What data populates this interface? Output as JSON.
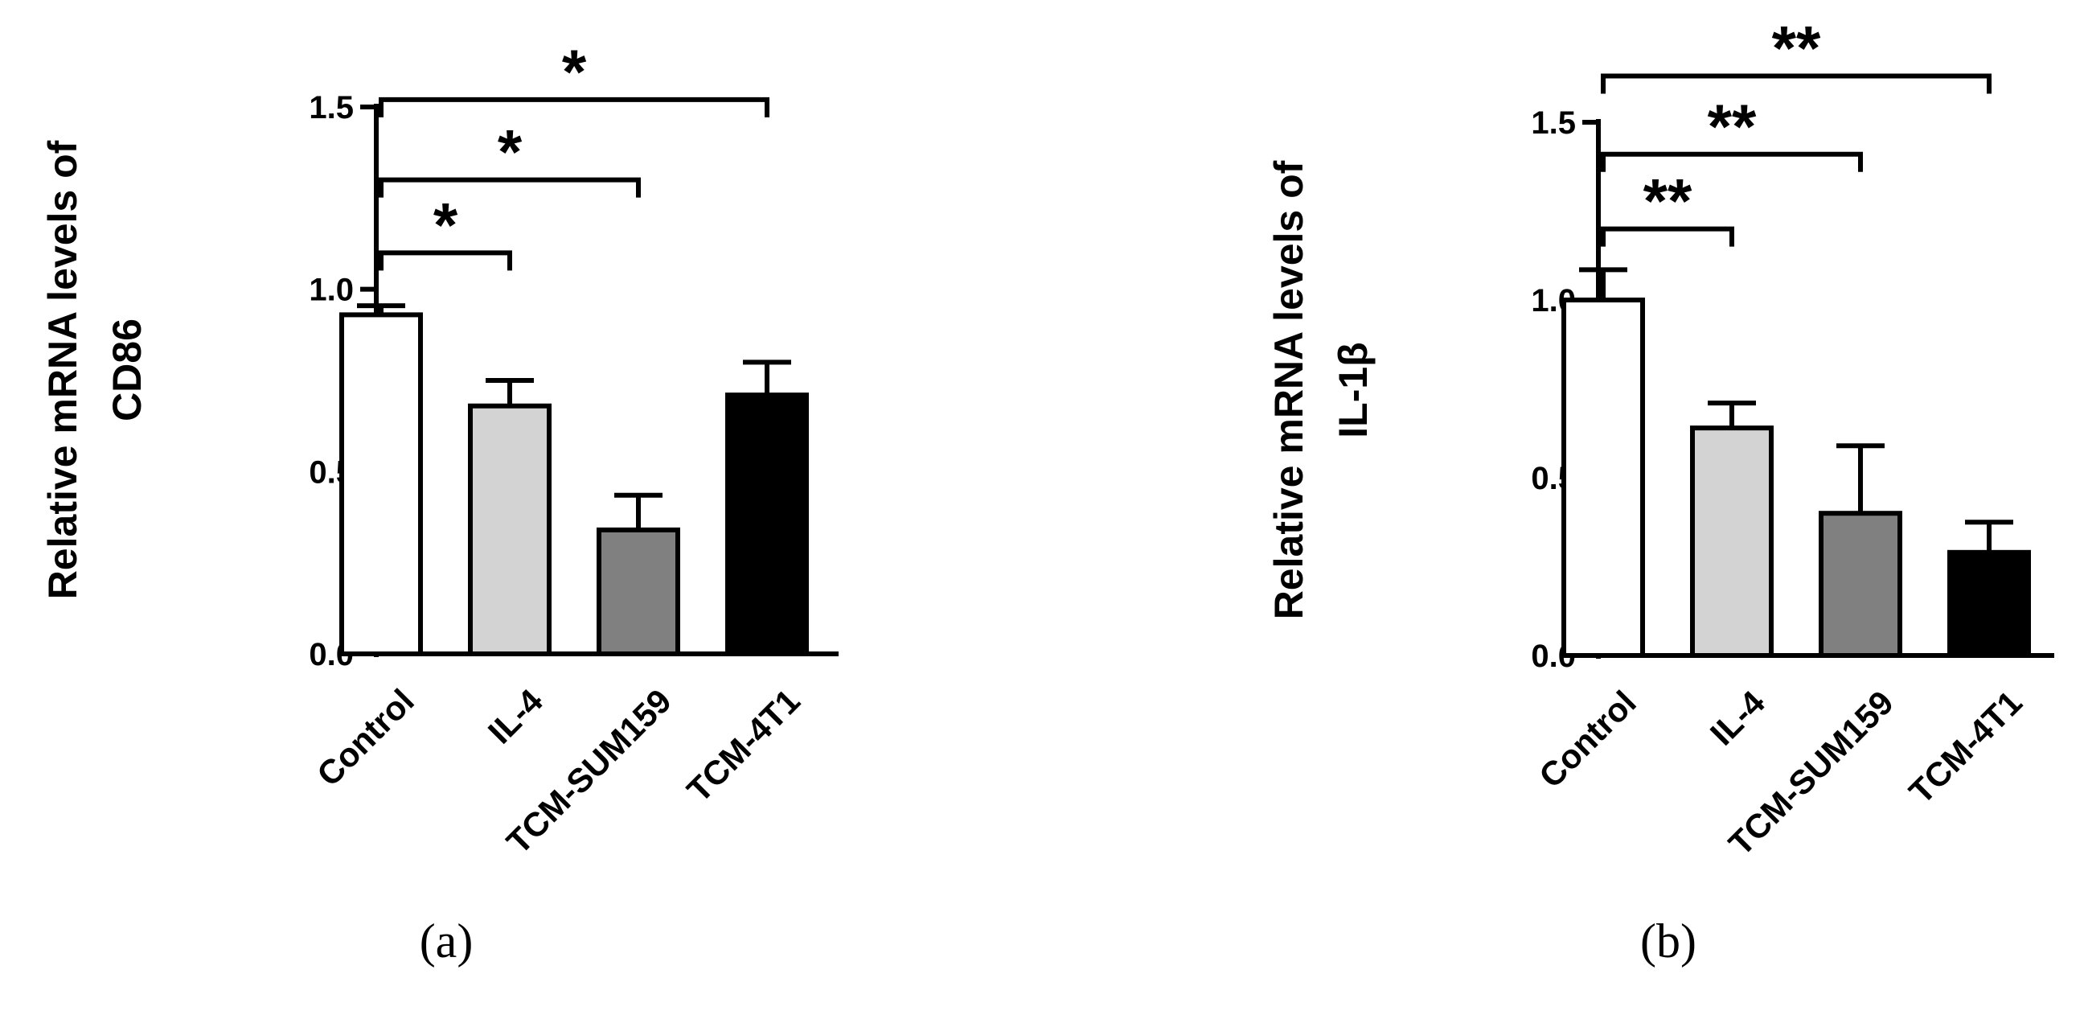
{
  "chart_data": [
    {
      "type": "bar",
      "panel_label": "(a)",
      "ylabel_lines": [
        "Relative  mRNA levels of",
        "CD86"
      ],
      "categories": [
        "Control",
        "IL-4",
        "TCM-SUM159",
        "TCM-4T1"
      ],
      "values": [
        0.93,
        0.68,
        0.34,
        0.71
      ],
      "errors": [
        0.025,
        0.07,
        0.095,
        0.09
      ],
      "colors": [
        "#ffffff",
        "#d3d3d3",
        "#808080",
        "#000000"
      ],
      "ylim": [
        0,
        1.5
      ],
      "yticks": [
        "0.0",
        "0.5",
        "1.0",
        "1.5"
      ],
      "ytick_values": [
        0,
        0.5,
        1.0,
        1.5
      ],
      "significance": [
        {
          "from": 0,
          "to": 1,
          "label": "*",
          "y": 1.1
        },
        {
          "from": 0,
          "to": 2,
          "label": "*",
          "y": 1.3
        },
        {
          "from": 0,
          "to": 3,
          "label": "*",
          "y": 1.52
        }
      ]
    },
    {
      "type": "bar",
      "panel_label": "(b)",
      "ylabel_lines": [
        "Relative  mRNA levels of",
        "IL-1β"
      ],
      "categories": [
        "Control",
        "IL-4",
        "TCM-SUM159",
        "TCM-4T1"
      ],
      "values": [
        1.0,
        0.64,
        0.4,
        0.29
      ],
      "errors": [
        0.085,
        0.07,
        0.19,
        0.085
      ],
      "colors": [
        "#ffffff",
        "#d3d3d3",
        "#808080",
        "#000000"
      ],
      "ylim": [
        0,
        1.5
      ],
      "yticks": [
        "0.0",
        "0.5",
        "1.0",
        "1.5"
      ],
      "ytick_values": [
        0,
        0.5,
        1.0,
        1.5
      ],
      "significance": [
        {
          "from": 0,
          "to": 1,
          "label": "**",
          "y": 1.2
        },
        {
          "from": 0,
          "to": 2,
          "label": "**",
          "y": 1.41
        },
        {
          "from": 0,
          "to": 3,
          "label": "**",
          "y": 1.63
        }
      ]
    }
  ]
}
